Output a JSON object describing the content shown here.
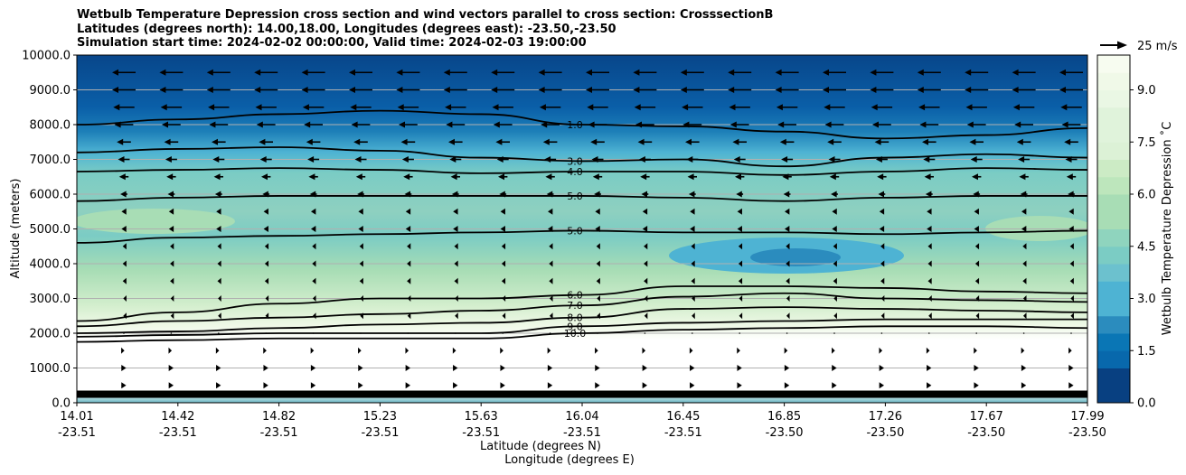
{
  "title_lines": [
    "Wetbulb Temperature Depression cross section and wind vectors parallel to cross section: CrosssectionB",
    "Latitudes (degrees north): 14.00,18.00, Longitudes (degrees east): -23.50,-23.50",
    "Simulation start time: 2024-02-02 00:00:00, Valid time: 2024-02-03 19:00:00"
  ],
  "chart_data": {
    "type": "heatmap",
    "subtype": "filled contour cross-section with wind vectors",
    "ylabel": "Altitude (meters)",
    "xlabel_line1": "Latitude (degrees N)",
    "xlabel_line2": "Longitude (degrees E)",
    "ylim": [
      0,
      10000
    ],
    "yticks": [
      "0.0",
      "1000.0",
      "2000.0",
      "3000.0",
      "4000.0",
      "5000.0",
      "6000.0",
      "7000.0",
      "8000.0",
      "9000.0",
      "10000.0"
    ],
    "ytick_values": [
      0,
      1000,
      2000,
      3000,
      4000,
      5000,
      6000,
      7000,
      8000,
      9000,
      10000
    ],
    "xticks": [
      {
        "lat": "14.01",
        "lon": "-23.51"
      },
      {
        "lat": "14.42",
        "lon": "-23.51"
      },
      {
        "lat": "14.82",
        "lon": "-23.51"
      },
      {
        "lat": "15.23",
        "lon": "-23.51"
      },
      {
        "lat": "15.63",
        "lon": "-23.51"
      },
      {
        "lat": "16.04",
        "lon": "-23.51"
      },
      {
        "lat": "16.45",
        "lon": "-23.51"
      },
      {
        "lat": "16.85",
        "lon": "-23.50"
      },
      {
        "lat": "17.26",
        "lon": "-23.50"
      },
      {
        "lat": "17.67",
        "lon": "-23.50"
      },
      {
        "lat": "17.99",
        "lon": "-23.50"
      }
    ],
    "xlim": [
      14.01,
      17.99
    ],
    "grid": "horizontal",
    "colorbar": {
      "label": "Wetbulb Temperature Depression ˚C",
      "ticks": [
        "0.0",
        "1.5",
        "3.0",
        "4.5",
        "6.0",
        "7.5",
        "9.0"
      ],
      "tick_values": [
        0,
        1.5,
        3.0,
        4.5,
        6.0,
        7.5,
        9.0
      ],
      "range": [
        0,
        10
      ],
      "colormap": "GnBu_r"
    },
    "quiver_key": "25 m/s",
    "contour_labels": [
      "1.0",
      "3.0",
      "4.0",
      "5.0",
      "6.0",
      "7.0",
      "8.0",
      "9.0",
      "10.0"
    ],
    "contours": [
      {
        "level": 1,
        "alt": [
          8000,
          8150,
          8300,
          8400,
          8300,
          8000,
          7950,
          7800,
          7600,
          7700,
          7900
        ]
      },
      {
        "level": 3,
        "alt": [
          7200,
          7300,
          7350,
          7250,
          7050,
          6950,
          7000,
          6800,
          7050,
          7150,
          7050
        ]
      },
      {
        "level": 4,
        "alt": [
          6650,
          6700,
          6750,
          6700,
          6600,
          6650,
          6650,
          6550,
          6650,
          6750,
          6700
        ]
      },
      {
        "level": 5,
        "alt": [
          5800,
          5900,
          5950,
          5950,
          5950,
          5950,
          5900,
          5800,
          5900,
          5950,
          5950
        ]
      },
      {
        "level": 5,
        "alt": [
          4600,
          4750,
          4800,
          4850,
          4900,
          4950,
          4900,
          4900,
          4850,
          4900,
          4950
        ]
      },
      {
        "level": 6,
        "alt": [
          2350,
          2600,
          2850,
          3000,
          3000,
          3100,
          3350,
          3350,
          3300,
          3200,
          3150
        ]
      },
      {
        "level": 7,
        "alt": [
          2200,
          2350,
          2450,
          2550,
          2650,
          2800,
          3050,
          3150,
          3000,
          2950,
          2900
        ]
      },
      {
        "level": 8,
        "alt": [
          2000,
          2050,
          2150,
          2250,
          2300,
          2450,
          2700,
          2750,
          2700,
          2650,
          2600
        ]
      },
      {
        "level": 9,
        "alt": [
          1900,
          1950,
          2000,
          2000,
          2000,
          2200,
          2300,
          2350,
          2400,
          2400,
          2400
        ]
      },
      {
        "level": 10,
        "alt": [
          1750,
          1800,
          1850,
          1850,
          1850,
          2000,
          2100,
          2150,
          2200,
          2200,
          2150
        ]
      }
    ],
    "wind_u_by_altitude": [
      {
        "alt": 9500,
        "u": -10
      },
      {
        "alt": 9000,
        "u": -10
      },
      {
        "alt": 8500,
        "u": -9
      },
      {
        "alt": 8000,
        "u": -8
      },
      {
        "alt": 7500,
        "u": -6
      },
      {
        "alt": 7000,
        "u": -5
      },
      {
        "alt": 6500,
        "u": -4
      },
      {
        "alt": 6000,
        "u": -3
      },
      {
        "alt": 5500,
        "u": -2
      },
      {
        "alt": 5000,
        "u": -2
      },
      {
        "alt": 4500,
        "u": -1
      },
      {
        "alt": 4000,
        "u": -1
      },
      {
        "alt": 3500,
        "u": -1
      },
      {
        "alt": 3000,
        "u": -0.5
      },
      {
        "alt": 2500,
        "u": -0.5
      },
      {
        "alt": 2000,
        "u": 0
      },
      {
        "alt": 1500,
        "u": 0.5
      },
      {
        "alt": 1000,
        "u": 2
      },
      {
        "alt": 500,
        "u": 2
      }
    ]
  },
  "colors": {
    "bg_dark": "#08589e",
    "bg_top": "#084887",
    "band_mid": "#7bccc4",
    "band_light": "#a8ddb5",
    "band_pale": "#f0f9e8",
    "contour": "#000000",
    "grid": "#b0b0b0"
  }
}
